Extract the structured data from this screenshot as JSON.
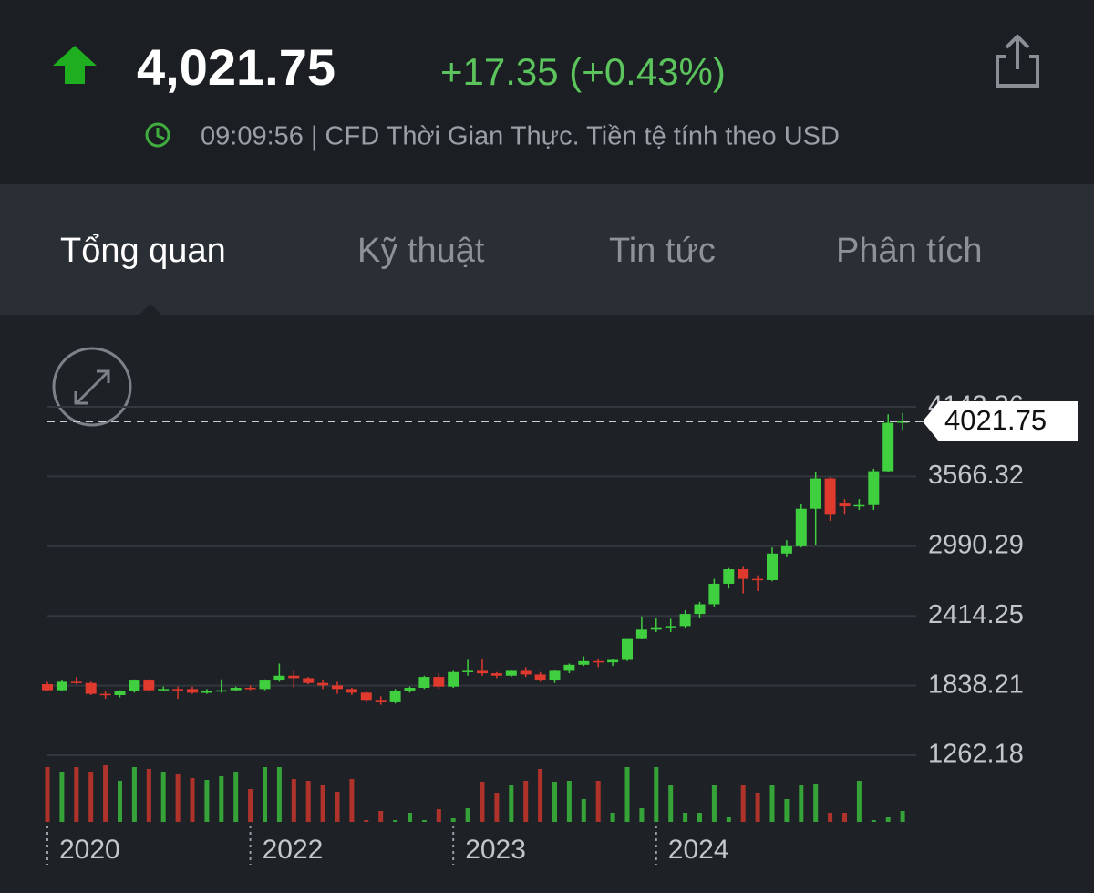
{
  "header": {
    "price": "4,021.75",
    "change": "+17.35 (+0.43%)",
    "info": "09:09:56 | CFD Thời Gian Thực. Tiền tệ tính theo USD"
  },
  "tabs": [
    "Tổng quan",
    "Kỹ thuật",
    "Tin tức",
    "Phân tích"
  ],
  "chart_data": {
    "type": "candlestick",
    "categories": [
      "2020",
      null,
      null,
      null,
      null,
      null,
      null,
      null,
      null,
      null,
      null,
      null,
      null,
      null,
      "2022",
      null,
      null,
      null,
      null,
      null,
      null,
      null,
      null,
      null,
      null,
      null,
      null,
      null,
      "2023",
      null,
      null,
      null,
      null,
      null,
      null,
      null,
      null,
      null,
      null,
      null,
      null,
      null,
      "2024",
      null,
      null,
      null,
      null,
      null,
      null,
      null,
      null,
      null,
      null,
      null,
      null,
      null,
      null,
      null,
      null,
      null
    ],
    "open": [
      1850,
      1800,
      1870,
      1860,
      1770,
      1760,
      1790,
      1880,
      1800,
      1810,
      1810,
      1780,
      1790,
      1800,
      1820,
      1810,
      1880,
      1920,
      1900,
      1860,
      1840,
      1810,
      1780,
      1720,
      1700,
      1790,
      1820,
      1910,
      1830,
      1950,
      1960,
      1940,
      1920,
      1960,
      1930,
      1880,
      1960,
      2010,
      2040,
      2030,
      2050,
      2230,
      2300,
      2320,
      2330,
      2430,
      2510,
      2680,
      2800,
      2720,
      2710,
      2930,
      2990,
      3300,
      3550,
      3350,
      3320,
      3330,
      3610,
      4010
    ],
    "high": [
      1870,
      1880,
      1910,
      1870,
      1790,
      1800,
      1890,
      1890,
      1830,
      1830,
      1830,
      1810,
      1890,
      1830,
      1840,
      1890,
      2020,
      1960,
      1910,
      1880,
      1870,
      1820,
      1790,
      1750,
      1810,
      1830,
      1920,
      1940,
      1960,
      2050,
      2060,
      1950,
      1970,
      1990,
      1950,
      1970,
      2020,
      2080,
      2060,
      2060,
      2230,
      2410,
      2400,
      2390,
      2460,
      2530,
      2720,
      2810,
      2820,
      2750,
      2980,
      3040,
      3340,
      3600,
      3560,
      3380,
      3380,
      3630,
      4080,
      4090
    ],
    "low": [
      1790,
      1790,
      1850,
      1760,
      1730,
      1740,
      1780,
      1790,
      1790,
      1730,
      1770,
      1770,
      1780,
      1790,
      1800,
      1800,
      1870,
      1820,
      1850,
      1810,
      1770,
      1760,
      1700,
      1680,
      1690,
      1780,
      1810,
      1810,
      1820,
      1920,
      1920,
      1900,
      1910,
      1910,
      1870,
      1860,
      1940,
      2000,
      1990,
      2000,
      2040,
      2220,
      2280,
      2280,
      2310,
      2400,
      2490,
      2640,
      2600,
      2620,
      2700,
      2900,
      2980,
      3000,
      3200,
      3250,
      3290,
      3290,
      3600,
      3950
    ],
    "close": [
      1800,
      1870,
      1860,
      1770,
      1760,
      1790,
      1880,
      1800,
      1810,
      1805,
      1780,
      1790,
      1800,
      1820,
      1810,
      1880,
      1920,
      1900,
      1860,
      1840,
      1810,
      1780,
      1720,
      1700,
      1790,
      1820,
      1910,
      1830,
      1950,
      1960,
      1940,
      1920,
      1960,
      1930,
      1880,
      1960,
      2010,
      2040,
      2030,
      2050,
      2230,
      2300,
      2320,
      2330,
      2430,
      2510,
      2680,
      2800,
      2720,
      2710,
      2930,
      2990,
      3300,
      3550,
      3250,
      3320,
      3330,
      3610,
      4010,
      4021.75
    ],
    "volume": [
      60,
      55,
      60,
      55,
      62,
      45,
      60,
      58,
      55,
      52,
      48,
      46,
      50,
      55,
      36,
      60,
      60,
      47,
      45,
      40,
      33,
      47,
      2,
      12,
      2,
      10,
      2,
      14,
      4,
      15,
      44,
      32,
      40,
      45,
      58,
      44,
      45,
      25,
      45,
      10,
      60,
      15,
      60,
      40,
      10,
      10,
      40,
      5,
      40,
      32,
      40,
      25,
      40,
      42,
      10,
      10,
      45,
      2,
      5,
      12
    ],
    "up_color": "#3fcf3f",
    "down_color": "#e0392e",
    "current_price": 4021.75,
    "ylim": [
      1262.18,
      4142.36
    ],
    "yticks": [
      1262.18,
      1838.21,
      2414.25,
      2990.29,
      3566.32,
      4142.36
    ],
    "grid": true
  }
}
